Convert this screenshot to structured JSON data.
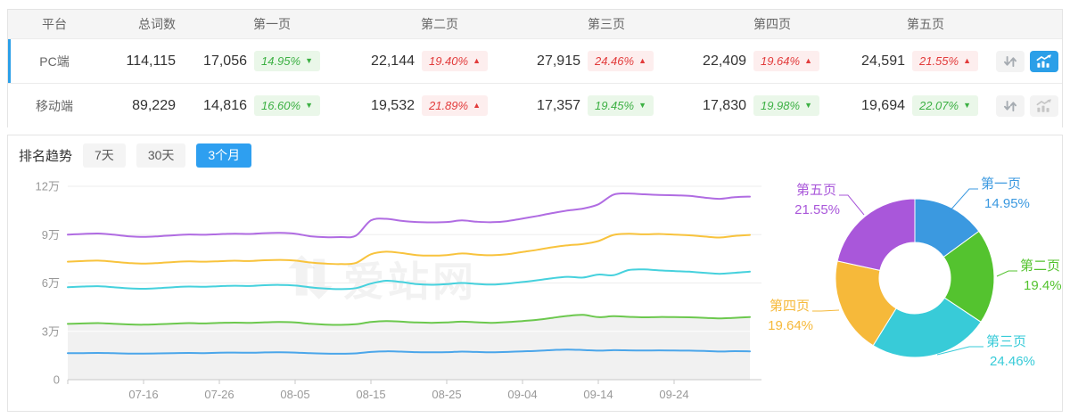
{
  "table": {
    "headers": {
      "platform": "平台",
      "total": "总词数",
      "pages": [
        "第一页",
        "第二页",
        "第三页",
        "第四页",
        "第五页"
      ]
    },
    "rows": [
      {
        "platform": "PC端",
        "total": "114,115",
        "selected": true,
        "chart_active": true,
        "pages": [
          {
            "value": "17,056",
            "pct": "14.95%",
            "trend": "down"
          },
          {
            "value": "22,144",
            "pct": "19.40%",
            "trend": "up"
          },
          {
            "value": "27,915",
            "pct": "24.46%",
            "trend": "up"
          },
          {
            "value": "22,409",
            "pct": "19.64%",
            "trend": "up"
          },
          {
            "value": "24,591",
            "pct": "21.55%",
            "trend": "up"
          }
        ]
      },
      {
        "platform": "移动端",
        "total": "89,229",
        "selected": false,
        "chart_active": false,
        "pages": [
          {
            "value": "14,816",
            "pct": "16.60%",
            "trend": "down"
          },
          {
            "value": "19,532",
            "pct": "21.89%",
            "trend": "up"
          },
          {
            "value": "17,357",
            "pct": "19.45%",
            "trend": "down"
          },
          {
            "value": "17,830",
            "pct": "19.98%",
            "trend": "down"
          },
          {
            "value": "19,694",
            "pct": "22.07%",
            "trend": "down"
          }
        ]
      }
    ]
  },
  "trend": {
    "title": "排名趋势",
    "tabs": [
      {
        "label": "7天",
        "active": false
      },
      {
        "label": "30天",
        "active": false
      },
      {
        "label": "3个月",
        "active": true
      }
    ],
    "watermark": "爱站网"
  },
  "colors": {
    "accent_blue": "#2b9fe8",
    "badge_up_text": "#e23b3b",
    "badge_up_bg": "#fdeeee",
    "badge_down_text": "#3cb043",
    "badge_down_bg": "#eaf7e9"
  },
  "chart_data": [
    {
      "type": "line",
      "title": "排名趋势 3个月",
      "note": "cumulative keyword counts by page, unit 万",
      "x_start_date": "07-06",
      "step_days": 2,
      "x_total_days": 90,
      "x_tick_days": [
        10,
        20,
        30,
        40,
        50,
        60,
        70,
        80
      ],
      "x_tick_labels": [
        "07-16",
        "07-26",
        "08-05",
        "08-15",
        "08-25",
        "09-04",
        "09-14",
        "09-24"
      ],
      "ylim": [
        0,
        12
      ],
      "y_tick_values": [
        0,
        3,
        6,
        9,
        12
      ],
      "y_tick_labels": [
        "0",
        "3万",
        "6万",
        "9万",
        "12万"
      ],
      "grid": true,
      "series": [
        {
          "name": "第五页",
          "color": "#b06ce2",
          "values": [
            9.0,
            9.04,
            9.07,
            9.0,
            8.9,
            8.86,
            8.9,
            8.96,
            9.01,
            8.99,
            9.03,
            9.06,
            9.04,
            9.09,
            9.11,
            9.06,
            8.9,
            8.84,
            8.85,
            8.93,
            9.88,
            9.98,
            9.86,
            9.78,
            9.76,
            9.78,
            9.88,
            9.8,
            9.77,
            9.84,
            10.0,
            10.16,
            10.34,
            10.5,
            10.62,
            10.88,
            11.48,
            11.55,
            11.5,
            11.46,
            11.44,
            11.4,
            11.3,
            11.22,
            11.32,
            11.36
          ]
        },
        {
          "name": "第四页",
          "color": "#f8c33d",
          "values": [
            7.32,
            7.36,
            7.39,
            7.32,
            7.24,
            7.2,
            7.24,
            7.3,
            7.34,
            7.32,
            7.35,
            7.38,
            7.36,
            7.41,
            7.43,
            7.39,
            7.27,
            7.2,
            7.17,
            7.24,
            7.78,
            7.94,
            7.86,
            7.73,
            7.7,
            7.73,
            7.83,
            7.76,
            7.72,
            7.78,
            7.92,
            8.06,
            8.22,
            8.34,
            8.42,
            8.6,
            8.98,
            9.05,
            9.02,
            9.04,
            9.0,
            8.96,
            8.88,
            8.82,
            8.92,
            8.98
          ]
        },
        {
          "name": "第三页",
          "color": "#46d1dd",
          "values": [
            5.74,
            5.78,
            5.8,
            5.74,
            5.67,
            5.64,
            5.68,
            5.74,
            5.78,
            5.76,
            5.8,
            5.83,
            5.81,
            5.86,
            5.88,
            5.84,
            5.73,
            5.65,
            5.62,
            5.68,
            5.96,
            6.14,
            6.06,
            5.93,
            5.89,
            5.93,
            6.0,
            5.94,
            5.9,
            5.96,
            6.06,
            6.17,
            6.3,
            6.38,
            6.34,
            6.52,
            6.48,
            6.8,
            6.84,
            6.78,
            6.74,
            6.7,
            6.63,
            6.57,
            6.63,
            6.7
          ]
        },
        {
          "name": "第二页",
          "color": "#6cc84e",
          "area_fill": "#f1f1f1",
          "values": [
            3.46,
            3.49,
            3.51,
            3.47,
            3.43,
            3.41,
            3.44,
            3.48,
            3.51,
            3.49,
            3.52,
            3.54,
            3.53,
            3.56,
            3.58,
            3.55,
            3.47,
            3.42,
            3.4,
            3.44,
            3.58,
            3.64,
            3.6,
            3.55,
            3.53,
            3.55,
            3.6,
            3.56,
            3.53,
            3.57,
            3.64,
            3.72,
            3.84,
            3.96,
            4.02,
            3.88,
            3.94,
            3.9,
            3.87,
            3.89,
            3.88,
            3.87,
            3.84,
            3.8,
            3.84,
            3.89
          ]
        },
        {
          "name": "第一页",
          "color": "#4ba6ea",
          "values": [
            1.64,
            1.65,
            1.66,
            1.64,
            1.62,
            1.62,
            1.63,
            1.65,
            1.66,
            1.65,
            1.67,
            1.68,
            1.67,
            1.69,
            1.7,
            1.68,
            1.64,
            1.62,
            1.61,
            1.63,
            1.72,
            1.76,
            1.74,
            1.71,
            1.7,
            1.71,
            1.74,
            1.72,
            1.7,
            1.72,
            1.76,
            1.79,
            1.84,
            1.87,
            1.84,
            1.8,
            1.83,
            1.82,
            1.81,
            1.82,
            1.81,
            1.8,
            1.78,
            1.75,
            1.77,
            1.76
          ]
        }
      ]
    },
    {
      "type": "donut",
      "slices": [
        {
          "label": "第一页",
          "value": 14.95,
          "display": "14.95%",
          "color": "#3b99e0"
        },
        {
          "label": "第二页",
          "value": 19.4,
          "display": "19.4%",
          "color": "#54c32f"
        },
        {
          "label": "第三页",
          "value": 24.46,
          "display": "24.46%",
          "color": "#38cbd8"
        },
        {
          "label": "第四页",
          "value": 19.64,
          "display": "19.64%",
          "color": "#f6b93a"
        },
        {
          "label": "第五页",
          "value": 21.55,
          "display": "21.55%",
          "color": "#a957da"
        }
      ]
    }
  ]
}
